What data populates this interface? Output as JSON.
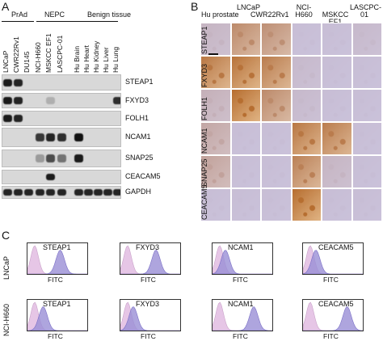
{
  "panels": {
    "a": "A",
    "b": "B",
    "c": "C"
  },
  "western": {
    "groups": [
      "PrAd",
      "NEPC",
      "Benign tissue"
    ],
    "lanes": [
      "LNCaP",
      "CWR22Rv1",
      "DU145",
      "NCI-H660",
      "MSKCC EF1",
      "LASCPC-01",
      "Hu Brain",
      "Hu Heart",
      "Hu Kidney",
      "Hu Liver",
      "Hu Lung"
    ],
    "bands": [
      "STEAP1",
      "FXYD3",
      "FOLH1",
      "NCAM1",
      "SNAP25",
      "CEACAM5",
      "GAPDH"
    ],
    "intensity": [
      [
        0.95,
        0.9,
        0,
        0,
        0,
        0,
        0,
        0,
        0,
        0,
        0
      ],
      [
        0.95,
        0.9,
        0,
        0,
        0.2,
        0,
        0,
        0,
        0,
        0,
        0.85
      ],
      [
        0.95,
        0.9,
        0,
        0,
        0,
        0,
        0,
        0,
        0,
        0,
        0
      ],
      [
        0,
        0,
        0,
        0.8,
        0.9,
        0.85,
        1,
        0,
        0,
        0,
        0
      ],
      [
        0,
        0,
        0,
        0.3,
        0.7,
        0.5,
        0.95,
        0,
        0,
        0,
        0
      ],
      [
        0,
        0,
        0,
        0,
        0.95,
        0,
        0,
        0,
        0,
        0,
        0
      ],
      [
        0.9,
        0.9,
        0.9,
        0.9,
        0.9,
        0.9,
        0.9,
        0.9,
        0.9,
        0.9,
        0.9
      ]
    ]
  },
  "ihc": {
    "columns": [
      "Hu prostate",
      "LNCaP",
      "CWR22Rv1",
      "NCI-H660",
      "MSKCC EF1",
      "LASCPC-01"
    ],
    "rows": [
      "STEAP1",
      "FXYD3",
      "FOLH1",
      "NCAM1",
      "SNAP25",
      "CEACAM5"
    ],
    "stain": [
      [
        0.15,
        0.6,
        0.55,
        0.05,
        0.05,
        0.1
      ],
      [
        0.8,
        0.85,
        0.75,
        0.1,
        0.05,
        0.05
      ],
      [
        0.2,
        0.9,
        0.6,
        0.1,
        0.05,
        0.05
      ],
      [
        0.3,
        0.05,
        0.05,
        0.8,
        0.75,
        0.05
      ],
      [
        0.35,
        0.05,
        0.05,
        0.7,
        0.15,
        0.05
      ],
      [
        0.05,
        0.05,
        0.05,
        0.9,
        0.05,
        0.05
      ]
    ]
  },
  "flow": {
    "rows": [
      "LNCaP",
      "NCI-H660"
    ],
    "markers": [
      "STEAP1",
      "FXYD3",
      "NCAM1",
      "CEACAM5"
    ],
    "x_label": "FITC",
    "shift": [
      [
        0.45,
        0.5,
        0.1,
        0.1
      ],
      [
        0.15,
        0.1,
        0.6,
        0.65
      ]
    ]
  },
  "colors": {
    "band": "#111111",
    "stain_brown": "#b5651d",
    "counterstain": "#c9c3e0",
    "control_fill": "#e6c6e6",
    "sample_fill": "#9a8fd6"
  }
}
